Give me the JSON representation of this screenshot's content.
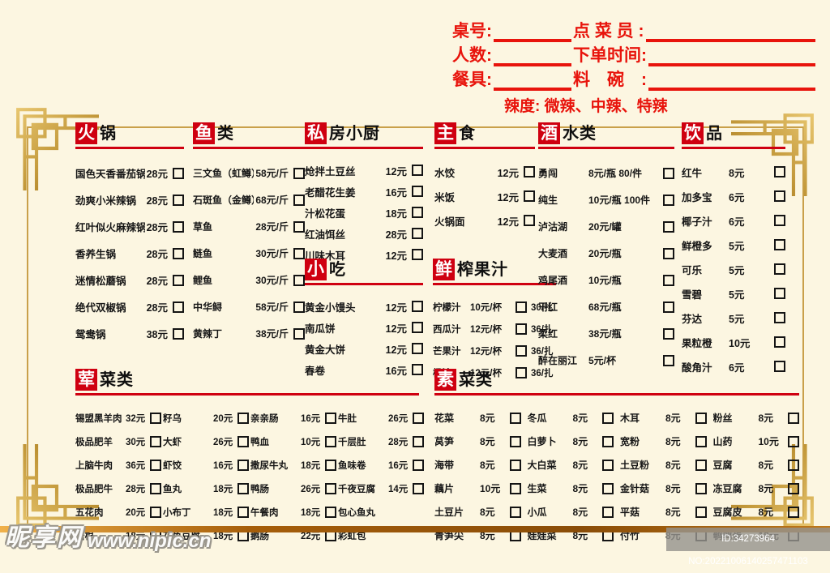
{
  "page": {
    "background_color": "#fcf6e1",
    "accent_red": "#e8140c",
    "section_red": "#cf0010",
    "gold": "#c9a04a"
  },
  "order_form": {
    "rows": [
      {
        "label1": "桌号:",
        "label2": "点 菜 员 :"
      },
      {
        "label1": "人数:",
        "label2": "下单时间:"
      },
      {
        "label1": "餐具:",
        "label2": "料　碗　:"
      }
    ],
    "spice_label": "辣度: 微辣、中辣、特辣"
  },
  "sections": [
    {
      "id": "hotpot",
      "badge": "火",
      "title": "锅",
      "items": [
        {
          "name": "国色天香番茄锅",
          "price": "28元",
          "box": true
        },
        {
          "name": "劲爽小米辣锅",
          "price": "28元",
          "box": true
        },
        {
          "name": "红叶似火麻辣锅",
          "price": "28元",
          "box": true
        },
        {
          "name": "香养生锅",
          "price": "28元",
          "box": true
        },
        {
          "name": "迷情松蘑锅",
          "price": "28元",
          "box": true
        },
        {
          "name": "绝代双椒锅",
          "price": "28元",
          "box": true
        },
        {
          "name": "鸳鸯锅",
          "price": "38元",
          "box": true
        }
      ]
    },
    {
      "id": "fish",
      "badge": "鱼",
      "title": "类",
      "items": [
        {
          "name": "三文鱼（虹鳟）",
          "price": "58元/斤",
          "box": true
        },
        {
          "name": "石斑鱼（金鳟）",
          "price": "68元/斤",
          "box": true
        },
        {
          "name": "草鱼",
          "price": "28元/斤",
          "box": true
        },
        {
          "name": "鲢鱼",
          "price": "30元/斤",
          "box": true
        },
        {
          "name": "鲤鱼",
          "price": "30元/斤",
          "box": true
        },
        {
          "name": "中华鲟",
          "price": "58元/斤",
          "box": true
        },
        {
          "name": "黄辣丁",
          "price": "38元/斤",
          "box": true
        }
      ]
    },
    {
      "id": "private",
      "badge": "私",
      "title": "房小厨",
      "items": [
        {
          "name": "炝拌土豆丝",
          "price": "12元",
          "box": true
        },
        {
          "name": "老醋花生姜",
          "price": "16元",
          "box": true
        },
        {
          "name": "汁松花蛋",
          "price": "18元",
          "box": true
        },
        {
          "name": "红油饵丝",
          "price": "28元",
          "box": true
        },
        {
          "name": "川味木耳",
          "price": "12元",
          "box": true
        }
      ]
    },
    {
      "id": "snacks",
      "badge": "小",
      "title": "吃",
      "items": [
        {
          "name": "黄金小馒头",
          "price": "12元",
          "box": true
        },
        {
          "name": "南瓜饼",
          "price": "12元",
          "box": true
        },
        {
          "name": "黄金大饼",
          "price": "12元",
          "box": true
        },
        {
          "name": "春卷",
          "price": "16元",
          "box": true
        }
      ]
    },
    {
      "id": "staple",
      "badge": "主",
      "title": "食",
      "items": [
        {
          "name": "水饺",
          "price": "12元",
          "box": true
        },
        {
          "name": "米饭",
          "price": "12元",
          "box": true
        },
        {
          "name": "火锅面",
          "price": "12元",
          "box": true
        }
      ]
    },
    {
      "id": "juice",
      "badge": "鲜",
      "title": "榨果汁",
      "items": [
        {
          "name": "柠檬汁",
          "price": "10元/杯",
          "box": true,
          "price2": "30/扎"
        },
        {
          "name": "西瓜汁",
          "price": "12元/杯",
          "box": true,
          "price2": "36/扎"
        },
        {
          "name": "芒果汁",
          "price": "12元/杯",
          "box": true,
          "price2": "36/扎"
        },
        {
          "name": "橙汁",
          "price": "12元/杯",
          "box": true,
          "price2": "36/扎"
        }
      ]
    },
    {
      "id": "drinks",
      "badge": "酒",
      "title": "水类",
      "items": [
        {
          "name": "勇闯",
          "price": "8元/瓶 80/件",
          "box": true
        },
        {
          "name": "纯生",
          "price": "10元/瓶 100件",
          "box": true
        },
        {
          "name": "泸沽湖",
          "price": "20元/罐",
          "box": true
        },
        {
          "name": "大麦酒",
          "price": "20元/瓶",
          "box": true
        },
        {
          "name": "鸡尾酒",
          "price": "10元/瓶",
          "box": true
        },
        {
          "name": "干红",
          "price": "68元/瓶",
          "box": true
        },
        {
          "name": "柔红",
          "price": "38元/瓶",
          "box": true
        },
        {
          "name": "醉在丽江",
          "price": "5元/杯",
          "box": true
        }
      ]
    },
    {
      "id": "bev",
      "badge": "饮",
      "title": "品",
      "items": [
        {
          "name": "红牛",
          "price": "8元",
          "box": true
        },
        {
          "name": "加多宝",
          "price": "6元",
          "box": true
        },
        {
          "name": "椰子汁",
          "price": "6元",
          "box": true
        },
        {
          "name": "鲜橙多",
          "price": "5元",
          "box": true
        },
        {
          "name": "可乐",
          "price": "5元",
          "box": true
        },
        {
          "name": "雪碧",
          "price": "5元",
          "box": true
        },
        {
          "name": "芬达",
          "price": "5元",
          "box": true
        },
        {
          "name": "果粒橙",
          "price": "10元",
          "box": true
        },
        {
          "name": "酸角汁",
          "price": "6元",
          "box": true
        }
      ]
    },
    {
      "id": "meat",
      "badge": "荤",
      "title": "菜类",
      "columns": [
        [
          {
            "name": "锡盟黑羊肉",
            "price": "32元",
            "box": true
          },
          {
            "name": "极品肥羊",
            "price": "30元",
            "box": true
          },
          {
            "name": "上脑牛肉",
            "price": "36元",
            "box": true
          },
          {
            "name": "极品肥牛",
            "price": "28元",
            "box": true
          },
          {
            "name": "五花肉",
            "price": "20元",
            "box": true
          },
          {
            "name": "培根",
            "price": "18元",
            "box": true
          }
        ],
        [
          {
            "name": "籽乌",
            "price": "20元",
            "box": true
          },
          {
            "name": "大虾",
            "price": "26元",
            "box": true
          },
          {
            "name": "虾饺",
            "price": "16元",
            "box": true
          },
          {
            "name": "鱼丸",
            "price": "18元",
            "box": true
          },
          {
            "name": "小布丁",
            "price": "18元",
            "box": true
          },
          {
            "name": "花鱼豆腐",
            "price": "18元",
            "box": true
          }
        ],
        [
          {
            "name": "亲亲肠",
            "price": "16元",
            "box": true
          },
          {
            "name": "鸭血",
            "price": "10元",
            "box": true
          },
          {
            "name": "撒尿牛丸",
            "price": "18元",
            "box": true
          },
          {
            "name": "鸭肠",
            "price": "26元",
            "box": true
          },
          {
            "name": "午餐肉",
            "price": "18元",
            "box": true
          },
          {
            "name": "鹅肠",
            "price": "22元",
            "box": true
          }
        ],
        [
          {
            "name": "牛肚",
            "price": "26元",
            "box": true
          },
          {
            "name": "千层肚",
            "price": "28元",
            "box": true
          },
          {
            "name": "鱼味卷",
            "price": "16元",
            "box": true
          },
          {
            "name": "千夜豆腐",
            "price": "14元",
            "box": true
          },
          {
            "name": "包心鱼丸",
            "price": "",
            "box": false
          },
          {
            "name": "彩虹包",
            "price": "",
            "box": false
          }
        ]
      ]
    },
    {
      "id": "veg",
      "badge": "素",
      "title": "菜类",
      "columns": [
        [
          {
            "name": "花菜",
            "price": "8元",
            "box": true
          },
          {
            "name": "莴笋",
            "price": "8元",
            "box": true
          },
          {
            "name": "海带",
            "price": "8元",
            "box": true
          },
          {
            "name": "藕片",
            "price": "10元",
            "box": true
          },
          {
            "name": "土豆片",
            "price": "8元",
            "box": true
          },
          {
            "name": "青笋尖",
            "price": "8元",
            "box": true
          }
        ],
        [
          {
            "name": "冬瓜",
            "price": "8元",
            "box": true
          },
          {
            "name": "白萝卜",
            "price": "8元",
            "box": true
          },
          {
            "name": "大白菜",
            "price": "8元",
            "box": true
          },
          {
            "name": "生菜",
            "price": "8元",
            "box": true
          },
          {
            "name": "小瓜",
            "price": "8元",
            "box": true
          },
          {
            "name": "娃娃菜",
            "price": "8元",
            "box": true
          }
        ],
        [
          {
            "name": "木耳",
            "price": "8元",
            "box": true
          },
          {
            "name": "宽粉",
            "price": "8元",
            "box": true
          },
          {
            "name": "土豆粉",
            "price": "8元",
            "box": true
          },
          {
            "name": "金针菇",
            "price": "8元",
            "box": true
          },
          {
            "name": "平菇",
            "price": "8元",
            "box": true
          },
          {
            "name": "付竹",
            "price": "8元",
            "box": true
          }
        ],
        [
          {
            "name": "粉丝",
            "price": "8元",
            "box": true
          },
          {
            "name": "山药",
            "price": "10元",
            "box": true
          },
          {
            "name": "豆腐",
            "price": "8元",
            "box": true
          },
          {
            "name": "冻豆腐",
            "price": "8元",
            "box": true
          },
          {
            "name": "豆腐皮",
            "price": "8元",
            "box": true
          },
          {
            "name": "鹌鹑蛋",
            "price": "18元",
            "box": true
          }
        ]
      ]
    }
  ],
  "watermarks": {
    "site": "昵享网",
    "url": "www.nipic.cn",
    "id_text": "ID:34273964 NO:20221006140257471103"
  }
}
